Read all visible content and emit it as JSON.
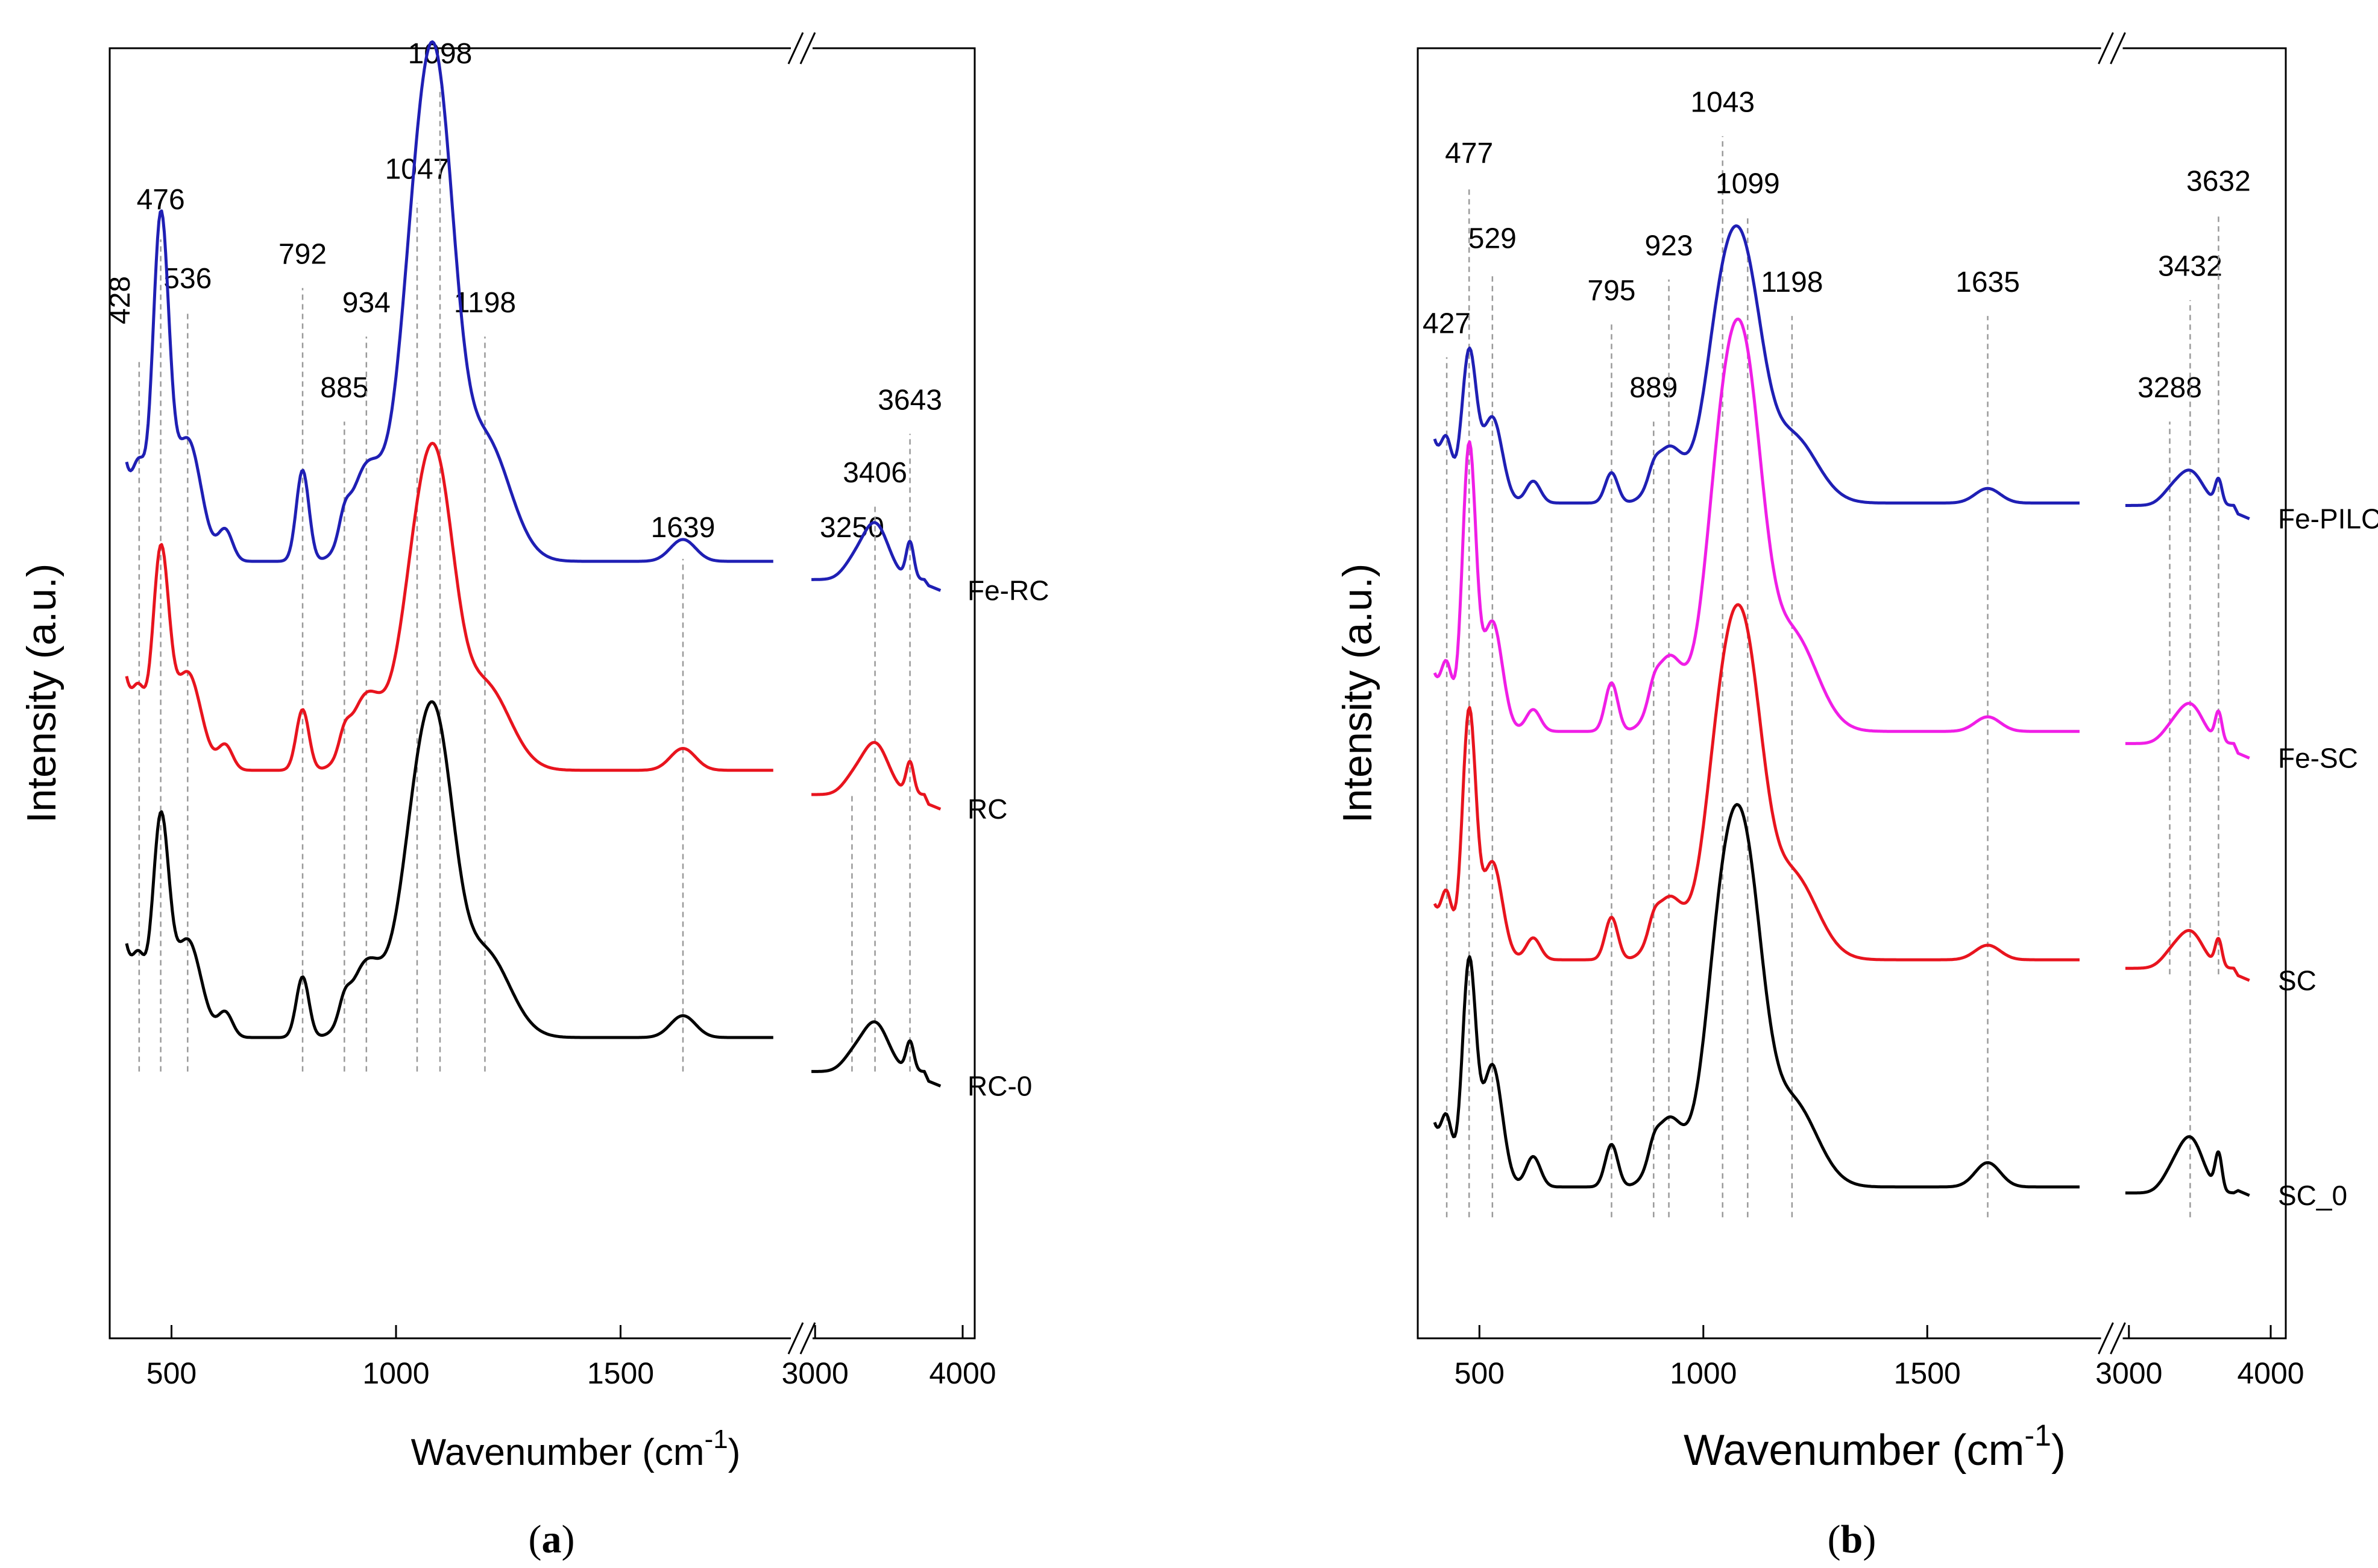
{
  "chart_data": [
    {
      "panel": "a",
      "caption_open": "(",
      "caption_letter": "a",
      "caption_close": ")",
      "type": "line",
      "title": "",
      "xlabel": "Wavenumber (cm",
      "xlabel_sup": "-1",
      "xlabel_close": ")",
      "ylabel": "Intensity (a.u.)",
      "x_segments": [
        [
          400,
          1890
        ],
        [
          2950,
          4000
        ]
      ],
      "y_range": [
        0,
        1
      ],
      "x_ticks": [
        {
          "value": 500,
          "label": "500"
        },
        {
          "value": 1000,
          "label": "1000"
        },
        {
          "value": 1500,
          "label": "1500"
        },
        {
          "value": 3000,
          "label": "3000"
        },
        {
          "value": 4000,
          "label": "4000"
        }
      ],
      "colors": {
        "Fe-RC": "#1f1fb4",
        "RC": "#e8141e",
        "RC-0": "#000000"
      },
      "series": [
        {
          "name": "Fe-RC",
          "label_text": "Fe-RC",
          "label_y": 0.566,
          "end": 0.566,
          "start": 0.665,
          "low_seg1": 0.59,
          "low_seg2": 0.575,
          "peaks": [
            {
              "x": 428,
              "h": 0.05,
              "w": 14
            },
            {
              "x": 476,
              "h": 0.27,
              "w": 18
            },
            {
              "x": 536,
              "h": 0.1,
              "w": 30
            },
            {
              "x": 620,
              "h": 0.025,
              "w": 16
            },
            {
              "x": 792,
              "h": 0.075,
              "w": 14
            },
            {
              "x": 885,
              "h": 0.018,
              "w": 12
            },
            {
              "x": 934,
              "h": 0.075,
              "w": 36
            },
            {
              "x": 1047,
              "h": 0.24,
              "w": 42
            },
            {
              "x": 1098,
              "h": 0.27,
              "w": 38
            },
            {
              "x": 1198,
              "h": 0.1,
              "w": 55
            },
            {
              "x": 1639,
              "h": 0.018,
              "w": 28
            },
            {
              "x": 3250,
              "h": 0.01,
              "w": 70
            },
            {
              "x": 3406,
              "h": 0.046,
              "w": 90
            },
            {
              "x": 3643,
              "h": 0.03,
              "w": 26
            }
          ]
        },
        {
          "name": "RC",
          "label_text": "RC",
          "label_y": 0.386,
          "end": 0.386,
          "start": 0.49,
          "low_seg1": 0.418,
          "low_seg2": 0.398,
          "peaks": [
            {
              "x": 428,
              "h": 0.04,
              "w": 14
            },
            {
              "x": 476,
              "h": 0.17,
              "w": 18
            },
            {
              "x": 536,
              "h": 0.08,
              "w": 30
            },
            {
              "x": 620,
              "h": 0.02,
              "w": 16
            },
            {
              "x": 792,
              "h": 0.05,
              "w": 14
            },
            {
              "x": 885,
              "h": 0.015,
              "w": 12
            },
            {
              "x": 934,
              "h": 0.06,
              "w": 36
            },
            {
              "x": 1047,
              "h": 0.15,
              "w": 42
            },
            {
              "x": 1098,
              "h": 0.17,
              "w": 38
            },
            {
              "x": 1198,
              "h": 0.07,
              "w": 55
            },
            {
              "x": 1639,
              "h": 0.018,
              "w": 28
            },
            {
              "x": 3250,
              "h": 0.01,
              "w": 70
            },
            {
              "x": 3406,
              "h": 0.042,
              "w": 90
            },
            {
              "x": 3643,
              "h": 0.026,
              "w": 26
            }
          ]
        },
        {
          "name": "RC-0",
          "label_text": "RC-0",
          "label_y": 0.158,
          "end": 0.158,
          "start": 0.27,
          "low_seg1": 0.198,
          "low_seg2": 0.17,
          "peaks": [
            {
              "x": 428,
              "h": 0.04,
              "w": 14
            },
            {
              "x": 476,
              "h": 0.17,
              "w": 18
            },
            {
              "x": 536,
              "h": 0.08,
              "w": 30
            },
            {
              "x": 620,
              "h": 0.02,
              "w": 16
            },
            {
              "x": 792,
              "h": 0.05,
              "w": 14
            },
            {
              "x": 885,
              "h": 0.015,
              "w": 12
            },
            {
              "x": 934,
              "h": 0.06,
              "w": 36
            },
            {
              "x": 1047,
              "h": 0.16,
              "w": 42
            },
            {
              "x": 1098,
              "h": 0.17,
              "w": 38
            },
            {
              "x": 1198,
              "h": 0.07,
              "w": 55
            },
            {
              "x": 1639,
              "h": 0.018,
              "w": 28
            },
            {
              "x": 3250,
              "h": 0.01,
              "w": 70
            },
            {
              "x": 3406,
              "h": 0.04,
              "w": 90
            },
            {
              "x": 3643,
              "h": 0.024,
              "w": 26
            }
          ]
        }
      ],
      "annotations": [
        {
          "x": 428,
          "label": "428",
          "label_y": 0.805,
          "rotated": true,
          "line_from": 0.17,
          "line_to": 0.755
        },
        {
          "x": 476,
          "label": "476",
          "label_y": 0.88,
          "rotated": false,
          "line_from": 0.17,
          "line_to": 0.855
        },
        {
          "x": 536,
          "label": "536",
          "label_y": 0.815,
          "rotated": false,
          "line_from": 0.17,
          "line_to": 0.795
        },
        {
          "x": 792,
          "label": "792",
          "label_y": 0.835,
          "rotated": false,
          "line_from": 0.17,
          "line_to": 0.815
        },
        {
          "x": 885,
          "label": "885",
          "label_y": 0.725,
          "rotated": false,
          "line_from": 0.17,
          "line_to": 0.705
        },
        {
          "x": 934,
          "label": "934",
          "label_y": 0.795,
          "rotated": false,
          "line_from": 0.17,
          "line_to": 0.775
        },
        {
          "x": 1047,
          "label": "1047",
          "label_y": 0.905,
          "rotated": false,
          "line_from": 0.17,
          "line_to": 0.885
        },
        {
          "x": 1098,
          "label": "1098",
          "label_y": 1.0,
          "rotated": false,
          "line_from": 0.17,
          "line_to": 0.98
        },
        {
          "x": 1198,
          "label": "1198",
          "label_y": 0.795,
          "rotated": false,
          "line_from": 0.17,
          "line_to": 0.775
        },
        {
          "x": 1639,
          "label": "1639",
          "label_y": 0.61,
          "rotated": false,
          "line_from": 0.17,
          "line_to": 0.592
        },
        {
          "x": 3250,
          "label": "3250",
          "label_y": 0.61,
          "rotated": false,
          "line_from": 0.17,
          "line_to": 0.4
        },
        {
          "x": 3406,
          "label": "3406",
          "label_y": 0.655,
          "rotated": false,
          "line_from": 0.17,
          "line_to": 0.635
        },
        {
          "x": 3643,
          "label": "3643",
          "label_y": 0.715,
          "rotated": false,
          "line_from": 0.17,
          "line_to": 0.695
        }
      ]
    },
    {
      "panel": "b",
      "caption_open": "(",
      "caption_letter": "b",
      "caption_close": ")",
      "type": "line",
      "title": "",
      "xlabel": "Wavenumber (cm",
      "xlabel_sup": "-1",
      "xlabel_close": ")",
      "ylabel": "Intensity (a.u.)",
      "x_segments": [
        [
          400,
          1890
        ],
        [
          2950,
          4000
        ]
      ],
      "y_range": [
        0,
        1
      ],
      "x_ticks": [
        {
          "value": 500,
          "label": "500"
        },
        {
          "value": 1000,
          "label": "1000"
        },
        {
          "value": 1500,
          "label": "1500"
        },
        {
          "value": 3000,
          "label": "3000"
        },
        {
          "value": 4000,
          "label": "4000"
        }
      ],
      "colors": {
        "Fe-PILC": "#1f1fb4",
        "Fe-SC": "#f01ee6",
        "SC": "#e8141e",
        "SC_0": "#000000"
      },
      "series": [
        {
          "name": "Fe-PILC",
          "label_text": "Fe-PILC",
          "label_y": 0.625,
          "end": 0.625,
          "start": 0.688,
          "low_seg1": 0.638,
          "low_seg2": 0.636,
          "peaks": [
            {
              "x": 427,
              "h": 0.035,
              "w": 12
            },
            {
              "x": 477,
              "h": 0.12,
              "w": 16
            },
            {
              "x": 529,
              "h": 0.07,
              "w": 22
            },
            {
              "x": 620,
              "h": 0.018,
              "w": 16
            },
            {
              "x": 795,
              "h": 0.025,
              "w": 14
            },
            {
              "x": 889,
              "h": 0.01,
              "w": 12
            },
            {
              "x": 923,
              "h": 0.045,
              "w": 32
            },
            {
              "x": 1043,
              "h": 0.15,
              "w": 40
            },
            {
              "x": 1099,
              "h": 0.14,
              "w": 38
            },
            {
              "x": 1198,
              "h": 0.055,
              "w": 55
            },
            {
              "x": 1635,
              "h": 0.012,
              "w": 28
            },
            {
              "x": 3288,
              "h": 0.008,
              "w": 70
            },
            {
              "x": 3432,
              "h": 0.028,
              "w": 90
            },
            {
              "x": 3632,
              "h": 0.02,
              "w": 24
            }
          ]
        },
        {
          "name": "Fe-SC",
          "label_text": "Fe-SC",
          "label_y": 0.428,
          "end": 0.428,
          "start": 0.495,
          "low_seg1": 0.45,
          "low_seg2": 0.44,
          "peaks": [
            {
              "x": 427,
              "h": 0.04,
              "w": 12
            },
            {
              "x": 477,
              "h": 0.23,
              "w": 15
            },
            {
              "x": 529,
              "h": 0.09,
              "w": 22
            },
            {
              "x": 620,
              "h": 0.018,
              "w": 16
            },
            {
              "x": 795,
              "h": 0.04,
              "w": 14
            },
            {
              "x": 889,
              "h": 0.012,
              "w": 12
            },
            {
              "x": 923,
              "h": 0.06,
              "w": 32
            },
            {
              "x": 1043,
              "h": 0.21,
              "w": 40
            },
            {
              "x": 1099,
              "h": 0.22,
              "w": 38
            },
            {
              "x": 1198,
              "h": 0.08,
              "w": 55
            },
            {
              "x": 1635,
              "h": 0.012,
              "w": 28
            },
            {
              "x": 3288,
              "h": 0.008,
              "w": 70
            },
            {
              "x": 3432,
              "h": 0.032,
              "w": 90
            },
            {
              "x": 3632,
              "h": 0.024,
              "w": 24
            }
          ]
        },
        {
          "name": "SC",
          "label_text": "SC",
          "label_y": 0.245,
          "end": 0.245,
          "start": 0.305,
          "low_seg1": 0.262,
          "low_seg2": 0.255,
          "peaks": [
            {
              "x": 427,
              "h": 0.04,
              "w": 12
            },
            {
              "x": 477,
              "h": 0.2,
              "w": 15
            },
            {
              "x": 529,
              "h": 0.08,
              "w": 22
            },
            {
              "x": 620,
              "h": 0.018,
              "w": 16
            },
            {
              "x": 795,
              "h": 0.035,
              "w": 14
            },
            {
              "x": 889,
              "h": 0.012,
              "w": 12
            },
            {
              "x": 923,
              "h": 0.05,
              "w": 32
            },
            {
              "x": 1043,
              "h": 0.18,
              "w": 40
            },
            {
              "x": 1099,
              "h": 0.19,
              "w": 38
            },
            {
              "x": 1198,
              "h": 0.07,
              "w": 55
            },
            {
              "x": 1635,
              "h": 0.012,
              "w": 28
            },
            {
              "x": 3288,
              "h": 0.008,
              "w": 70
            },
            {
              "x": 3432,
              "h": 0.03,
              "w": 90
            },
            {
              "x": 3632,
              "h": 0.022,
              "w": 24
            }
          ]
        },
        {
          "name": "SC_0",
          "label_text": "SC_0",
          "label_y": 0.068,
          "end": 0.068,
          "start": 0.125,
          "low_seg1": 0.075,
          "low_seg2": 0.07,
          "peaks": [
            {
              "x": 427,
              "h": 0.04,
              "w": 12
            },
            {
              "x": 477,
              "h": 0.18,
              "w": 15
            },
            {
              "x": 529,
              "h": 0.1,
              "w": 22
            },
            {
              "x": 620,
              "h": 0.025,
              "w": 16
            },
            {
              "x": 795,
              "h": 0.035,
              "w": 14
            },
            {
              "x": 889,
              "h": 0.012,
              "w": 12
            },
            {
              "x": 923,
              "h": 0.055,
              "w": 32
            },
            {
              "x": 1043,
              "h": 0.2,
              "w": 40
            },
            {
              "x": 1099,
              "h": 0.2,
              "w": 38
            },
            {
              "x": 1198,
              "h": 0.07,
              "w": 55
            },
            {
              "x": 1635,
              "h": 0.02,
              "w": 28
            },
            {
              "x": 3288,
              "h": 0.01,
              "w": 70
            },
            {
              "x": 3432,
              "h": 0.045,
              "w": 90
            },
            {
              "x": 3632,
              "h": 0.03,
              "w": 24
            }
          ]
        }
      ],
      "annotations": [
        {
          "x": 427,
          "label": "427",
          "label_y": 0.778,
          "rotated": false,
          "line_from": 0.05,
          "line_to": 0.758
        },
        {
          "x": 477,
          "label": "477",
          "label_y": 0.918,
          "rotated": false,
          "line_from": 0.05,
          "line_to": 0.898
        },
        {
          "x": 529,
          "label": "529",
          "label_y": 0.848,
          "rotated": false,
          "line_from": 0.05,
          "line_to": 0.828
        },
        {
          "x": 795,
          "label": "795",
          "label_y": 0.805,
          "rotated": false,
          "line_from": 0.05,
          "line_to": 0.785
        },
        {
          "x": 889,
          "label": "889",
          "label_y": 0.725,
          "rotated": false,
          "line_from": 0.05,
          "line_to": 0.705
        },
        {
          "x": 923,
          "label": "923",
          "label_y": 0.842,
          "rotated": false,
          "line_from": 0.05,
          "line_to": 0.822
        },
        {
          "x": 1043,
          "label": "1043",
          "label_y": 0.96,
          "rotated": false,
          "line_from": 0.05,
          "line_to": 0.94
        },
        {
          "x": 1099,
          "label": "1099",
          "label_y": 0.893,
          "rotated": false,
          "line_from": 0.05,
          "line_to": 0.873
        },
        {
          "x": 1198,
          "label": "1198",
          "label_y": 0.812,
          "rotated": false,
          "line_from": 0.05,
          "line_to": 0.792
        },
        {
          "x": 1635,
          "label": "1635",
          "label_y": 0.812,
          "rotated": false,
          "line_from": 0.05,
          "line_to": 0.792
        },
        {
          "x": 3288,
          "label": "3288",
          "label_y": 0.725,
          "rotated": false,
          "line_from": 0.25,
          "line_to": 0.705
        },
        {
          "x": 3432,
          "label": "3432",
          "label_y": 0.825,
          "rotated": false,
          "line_from": 0.05,
          "line_to": 0.805
        },
        {
          "x": 3632,
          "label": "3632",
          "label_y": 0.895,
          "rotated": false,
          "line_from": 0.25,
          "line_to": 0.875
        }
      ]
    }
  ]
}
